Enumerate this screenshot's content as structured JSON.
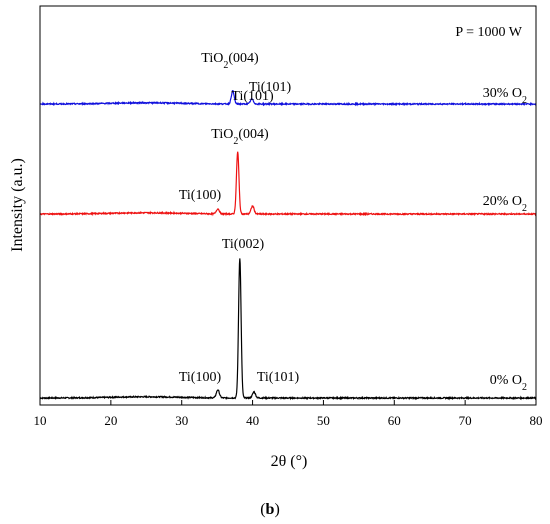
{
  "chart_data": {
    "type": "line",
    "xlabel": "2θ (°)",
    "ylabel": "Intensity (a.u.)",
    "xlim": [
      10,
      80
    ],
    "x_ticks": [
      10,
      20,
      30,
      40,
      50,
      60,
      70,
      80
    ],
    "y_ticks": "none",
    "grid": false,
    "condition_label": "P = 1000 W",
    "panel_label": "(b)",
    "y_axis_units": "relative, arbitrary units; traces stacked with vertical offsets",
    "series": [
      {
        "name": "0% O2",
        "color": "#000000",
        "offset": 0,
        "baseline": 2,
        "peaks": [
          {
            "x": 35.1,
            "h": 8,
            "w": 0.3
          },
          {
            "x": 38.2,
            "h": 140,
            "w": 0.25
          },
          {
            "x": 40.2,
            "h": 6,
            "w": 0.3
          }
        ]
      },
      {
        "name": "20% O2",
        "color": "#ee1111",
        "offset": 185,
        "baseline": 1,
        "peaks": [
          {
            "x": 35.1,
            "h": 5,
            "w": 0.3
          },
          {
            "x": 37.9,
            "h": 62,
            "w": 0.25
          },
          {
            "x": 40.0,
            "h": 8,
            "w": 0.3
          }
        ]
      },
      {
        "name": "30% O2",
        "color": "#1111dd",
        "offset": 295,
        "baseline": 1,
        "peaks": [
          {
            "x": 37.2,
            "h": 13,
            "w": 0.28
          },
          {
            "x": 39.9,
            "h": 5,
            "w": 0.3
          }
        ]
      }
    ],
    "series_labels": [
      {
        "series": 0,
        "pre": "0% O",
        "sub": "2"
      },
      {
        "series": 1,
        "pre": "20% O",
        "sub": "2"
      },
      {
        "series": 2,
        "pre": "30% O",
        "sub": "2"
      }
    ],
    "annotations": [
      {
        "series": 0,
        "x": 35.1,
        "pre": "Ti(100)",
        "sub": "",
        "post": ""
      },
      {
        "series": 0,
        "x": 38.2,
        "pre": "Ti(002)",
        "sub": "",
        "post": ""
      },
      {
        "series": 0,
        "x": 40.2,
        "pre": "Ti(101)",
        "sub": "",
        "post": ""
      },
      {
        "series": 1,
        "x": 35.1,
        "pre": "Ti(100)",
        "sub": "",
        "post": ""
      },
      {
        "series": 1,
        "x": 37.9,
        "pre": "TiO",
        "sub": "2",
        "post": "(004)"
      },
      {
        "series": 1,
        "x": 40.0,
        "pre": "Ti(101)",
        "sub": "",
        "post": ""
      },
      {
        "series": 2,
        "x": 37.2,
        "pre": "TiO",
        "sub": "2",
        "post": "(004)"
      },
      {
        "series": 2,
        "x": 39.9,
        "pre": "Ti(101)",
        "sub": "",
        "post": ""
      }
    ]
  }
}
